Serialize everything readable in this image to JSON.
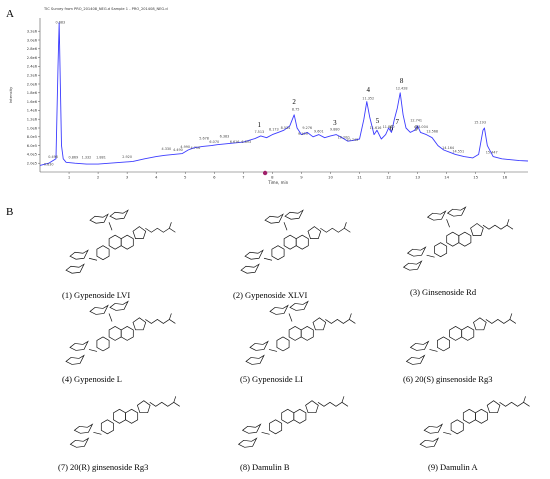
{
  "figure": {
    "panel_a_label": "A",
    "panel_b_label": "B"
  },
  "chart_data": {
    "type": "line",
    "title": "TIC Survey from PRO_201408_NEG.d Sample 1 - PRO_201408_NEG.d",
    "xlabel": "Time, min",
    "ylabel": "Intensity",
    "xlim": [
      0,
      16.8
    ],
    "ylim": [
      0,
      3.5
    ],
    "x_ticks": [
      "1",
      "2",
      "3",
      "4",
      "5",
      "6",
      "7",
      "8",
      "9",
      "10",
      "11",
      "12",
      "13",
      "14",
      "15",
      "16"
    ],
    "y_ticks": [
      "2.0e5",
      "4.0e5",
      "6.0e5",
      "8.0e5",
      "1.0e6",
      "1.2e6",
      "1.4e6",
      "1.6e6",
      "1.8e6",
      "2.0e6",
      "2.2e6",
      "2.4e6",
      "2.6e6",
      "2.8e6",
      "3.0e6",
      "3.2e6"
    ],
    "series": [
      {
        "color": "#3c3cff",
        "x": [
          0.0,
          0.3,
          0.55,
          0.62,
          0.66,
          0.7,
          0.74,
          0.8,
          0.9,
          1.2,
          1.6,
          2.0,
          2.4,
          2.8,
          3.2,
          3.6,
          4.0,
          4.3,
          4.6,
          4.9,
          5.1,
          5.3,
          5.6,
          5.9,
          6.1,
          6.4,
          6.7,
          7.0,
          7.2,
          7.4,
          7.6,
          7.8,
          8.0,
          8.2,
          8.4,
          8.6,
          8.75,
          8.85,
          9.0,
          9.2,
          9.4,
          9.6,
          9.8,
          10.0,
          10.2,
          10.4,
          10.6,
          10.8,
          11.0,
          11.15,
          11.25,
          11.35,
          11.5,
          11.6,
          11.75,
          11.9,
          12.0,
          12.1,
          12.2,
          12.3,
          12.4,
          12.5,
          12.6,
          12.75,
          12.9,
          13.0,
          13.1,
          13.3,
          13.5,
          13.7,
          13.9,
          14.1,
          14.3,
          14.6,
          14.9,
          15.1,
          15.25,
          15.3,
          15.4,
          15.6,
          15.9,
          16.2,
          16.5,
          16.8
        ],
        "values": [
          0.15,
          0.2,
          0.3,
          2.4,
          3.4,
          2.0,
          0.6,
          0.3,
          0.22,
          0.2,
          0.18,
          0.18,
          0.2,
          0.22,
          0.24,
          0.3,
          0.35,
          0.38,
          0.4,
          0.42,
          0.5,
          0.55,
          0.58,
          0.6,
          0.62,
          0.64,
          0.66,
          0.68,
          0.72,
          0.76,
          0.82,
          0.78,
          0.85,
          0.9,
          0.95,
          1.05,
          1.3,
          1.0,
          0.85,
          0.9,
          0.8,
          0.85,
          0.78,
          0.82,
          0.85,
          0.78,
          0.7,
          0.72,
          0.75,
          1.2,
          1.6,
          1.25,
          0.85,
          0.95,
          0.75,
          0.85,
          1.0,
          0.9,
          1.2,
          1.45,
          1.8,
          1.3,
          1.0,
          0.9,
          0.95,
          1.05,
          0.9,
          0.85,
          0.78,
          0.6,
          0.5,
          0.45,
          0.4,
          0.35,
          0.32,
          0.4,
          0.95,
          1.0,
          0.6,
          0.35,
          0.3,
          0.28,
          0.26,
          0.25
        ]
      }
    ],
    "peak_labels": [
      {
        "label": "1",
        "x": 7.55,
        "y": 0.95
      },
      {
        "label": "2",
        "x": 8.75,
        "y": 1.48
      },
      {
        "label": "3",
        "x": 10.15,
        "y": 1.0
      },
      {
        "label": "4",
        "x": 11.3,
        "y": 1.75
      },
      {
        "label": "5",
        "x": 11.62,
        "y": 1.05
      },
      {
        "label": "6",
        "x": 12.1,
        "y": 0.88
      },
      {
        "label": "7",
        "x": 12.3,
        "y": 1.02
      },
      {
        "label": "8",
        "x": 12.45,
        "y": 1.95
      },
      {
        "label": "9",
        "x": 12.95,
        "y": 0.88
      }
    ],
    "rt_annotations": [
      {
        "text": "0.683",
        "x": 0.7,
        "y": 3.35
      },
      {
        "text": "0.496",
        "x": 0.45,
        "y": 0.3
      },
      {
        "text": "0.830",
        "x": 0.3,
        "y": 0.12
      },
      {
        "text": "0.869",
        "x": 1.15,
        "y": 0.28
      },
      {
        "text": "1.332",
        "x": 1.6,
        "y": 0.28
      },
      {
        "text": "1.881",
        "x": 2.1,
        "y": 0.28
      },
      {
        "text": "2.920",
        "x": 3.0,
        "y": 0.3
      },
      {
        "text": "4.330",
        "x": 4.35,
        "y": 0.48
      },
      {
        "text": "4.490",
        "x": 4.75,
        "y": 0.46
      },
      {
        "text": "4.990",
        "x": 5.0,
        "y": 0.52
      },
      {
        "text": "4.716",
        "x": 5.35,
        "y": 0.5
      },
      {
        "text": "5.678",
        "x": 5.65,
        "y": 0.72
      },
      {
        "text": "6.070",
        "x": 6.0,
        "y": 0.64
      },
      {
        "text": "6.383",
        "x": 6.35,
        "y": 0.76
      },
      {
        "text": "6.616",
        "x": 6.7,
        "y": 0.64
      },
      {
        "text": "6.893",
        "x": 7.1,
        "y": 0.64
      },
      {
        "text": "7.513",
        "x": 7.55,
        "y": 0.86
      },
      {
        "text": "8.173",
        "x": 8.05,
        "y": 0.92
      },
      {
        "text": "8.534",
        "x": 8.45,
        "y": 0.96
      },
      {
        "text": "8.75",
        "x": 8.8,
        "y": 1.38
      },
      {
        "text": "9.276",
        "x": 9.2,
        "y": 0.96
      },
      {
        "text": "9.109",
        "x": 9.05,
        "y": 0.82
      },
      {
        "text": "9.601",
        "x": 9.6,
        "y": 0.88
      },
      {
        "text": "9.880",
        "x": 10.15,
        "y": 0.92
      },
      {
        "text": "10.200",
        "x": 10.45,
        "y": 0.74
      },
      {
        "text": "10.743",
        "x": 10.75,
        "y": 0.68
      },
      {
        "text": "11.352",
        "x": 11.3,
        "y": 1.62
      },
      {
        "text": "11.616",
        "x": 11.55,
        "y": 0.95
      },
      {
        "text": "11.870",
        "x": 12.0,
        "y": 0.98
      },
      {
        "text": "12.428",
        "x": 12.45,
        "y": 1.85
      },
      {
        "text": "12.741",
        "x": 12.95,
        "y": 1.12
      },
      {
        "text": "13.004",
        "x": 13.15,
        "y": 0.98
      },
      {
        "text": "13.568",
        "x": 13.5,
        "y": 0.88
      },
      {
        "text": "14.164",
        "x": 14.05,
        "y": 0.5
      },
      {
        "text": "14.551",
        "x": 14.4,
        "y": 0.42
      },
      {
        "text": "15.193",
        "x": 15.15,
        "y": 1.08
      },
      {
        "text": "15.447",
        "x": 15.55,
        "y": 0.4
      }
    ]
  },
  "compounds": [
    {
      "caption": "(1) Gypenoside LVI"
    },
    {
      "caption": "(2) Gypenoside XLVI"
    },
    {
      "caption": "(3) Ginsenoside Rd"
    },
    {
      "caption": "(4) Gypenoside L"
    },
    {
      "caption": "(5) Gypenoside LI"
    },
    {
      "caption": "(6) 20(S) ginsenoside Rg3"
    },
    {
      "caption": "(7) 20(R) ginsenoside Rg3"
    },
    {
      "caption": "(8) Damulin B"
    },
    {
      "caption": "(9) Damulin A"
    }
  ]
}
